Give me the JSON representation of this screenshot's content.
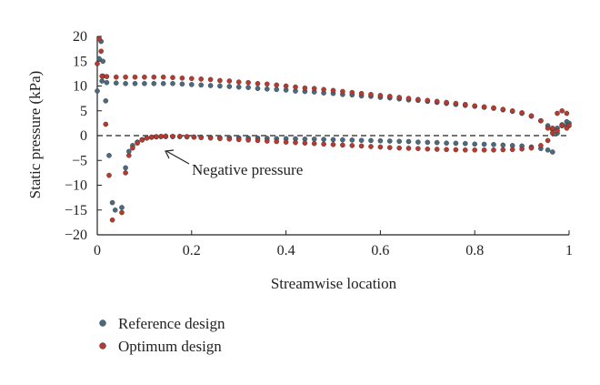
{
  "chart_data": {
    "type": "scatter",
    "xlabel": "Streamwise location",
    "ylabel": "Static pressure (kPa)",
    "xlim": [
      0,
      1
    ],
    "ylim": [
      -20,
      20
    ],
    "xticks": [
      "0",
      "0.2",
      "0.4",
      "0.6",
      "0.8",
      "1"
    ],
    "yticks": [
      "20",
      "15",
      "10",
      "5",
      "0",
      "−5",
      "−10",
      "−15",
      "−20"
    ],
    "xtick_values": [
      0,
      0.2,
      0.4,
      0.6,
      0.8,
      1
    ],
    "ytick_values": [
      20,
      15,
      10,
      5,
      0,
      -5,
      -10,
      -15,
      -20
    ],
    "grid": false,
    "reference_line": {
      "y": 0,
      "style": "dashed"
    },
    "legend_position": "bottom-left",
    "annotation": {
      "text": "Negative pressure",
      "x": 0.14,
      "y": -0.5
    },
    "series": [
      {
        "name": "Reference design",
        "color": "#4a6a80",
        "points": [
          [
            0.0,
            9.0
          ],
          [
            0.004,
            15.5
          ],
          [
            0.008,
            19.0
          ],
          [
            0.012,
            15.0
          ],
          [
            0.018,
            7.0
          ],
          [
            0.025,
            -4.0
          ],
          [
            0.032,
            -13.5
          ],
          [
            0.038,
            -15.0
          ],
          [
            0.052,
            -14.5
          ],
          [
            0.06,
            -6.5
          ],
          [
            0.067,
            -3.2
          ],
          [
            0.075,
            -2.0
          ],
          [
            0.085,
            -1.3
          ],
          [
            0.095,
            -0.8
          ],
          [
            0.105,
            -0.5
          ],
          [
            0.115,
            -0.35
          ],
          [
            0.125,
            -0.25
          ],
          [
            0.135,
            -0.2
          ],
          [
            0.145,
            -0.2
          ],
          [
            0.16,
            -0.2
          ],
          [
            0.175,
            -0.2
          ],
          [
            0.19,
            -0.25
          ],
          [
            0.205,
            -0.3
          ],
          [
            0.22,
            -0.3
          ],
          [
            0.24,
            -0.35
          ],
          [
            0.26,
            -0.4
          ],
          [
            0.28,
            -0.4
          ],
          [
            0.3,
            -0.45
          ],
          [
            0.32,
            -0.5
          ],
          [
            0.34,
            -0.5
          ],
          [
            0.36,
            -0.55
          ],
          [
            0.38,
            -0.6
          ],
          [
            0.4,
            -0.6
          ],
          [
            0.42,
            -0.65
          ],
          [
            0.44,
            -0.7
          ],
          [
            0.46,
            -0.7
          ],
          [
            0.48,
            -0.75
          ],
          [
            0.5,
            -0.8
          ],
          [
            0.52,
            -0.85
          ],
          [
            0.54,
            -0.9
          ],
          [
            0.56,
            -0.95
          ],
          [
            0.58,
            -1.0
          ],
          [
            0.6,
            -1.05
          ],
          [
            0.62,
            -1.1
          ],
          [
            0.64,
            -1.15
          ],
          [
            0.66,
            -1.2
          ],
          [
            0.68,
            -1.3
          ],
          [
            0.7,
            -1.35
          ],
          [
            0.72,
            -1.4
          ],
          [
            0.74,
            -1.5
          ],
          [
            0.76,
            -1.55
          ],
          [
            0.78,
            -1.6
          ],
          [
            0.8,
            -1.7
          ],
          [
            0.82,
            -1.75
          ],
          [
            0.84,
            -1.8
          ],
          [
            0.86,
            -1.9
          ],
          [
            0.88,
            -2.0
          ],
          [
            0.9,
            -2.1
          ],
          [
            0.92,
            -2.3
          ],
          [
            0.94,
            -2.6
          ],
          [
            0.955,
            -2.9
          ],
          [
            0.965,
            -3.3
          ],
          [
            0.975,
            0.5
          ],
          [
            0.985,
            2.0
          ],
          [
            0.995,
            2.8
          ],
          [
            1.0,
            2.5
          ],
          [
            0.01,
            11.0
          ],
          [
            0.02,
            10.7
          ],
          [
            0.04,
            10.6
          ],
          [
            0.06,
            10.5
          ],
          [
            0.08,
            10.5
          ],
          [
            0.1,
            10.5
          ],
          [
            0.12,
            10.5
          ],
          [
            0.14,
            10.5
          ],
          [
            0.16,
            10.5
          ],
          [
            0.18,
            10.4
          ],
          [
            0.2,
            10.3
          ],
          [
            0.22,
            10.2
          ],
          [
            0.24,
            10.1
          ],
          [
            0.26,
            10.0
          ],
          [
            0.28,
            9.9
          ],
          [
            0.3,
            9.8
          ],
          [
            0.32,
            9.7
          ],
          [
            0.34,
            9.5
          ],
          [
            0.36,
            9.4
          ],
          [
            0.38,
            9.3
          ],
          [
            0.4,
            9.2
          ],
          [
            0.42,
            9.0
          ],
          [
            0.44,
            8.9
          ],
          [
            0.46,
            8.8
          ],
          [
            0.48,
            8.6
          ],
          [
            0.5,
            8.5
          ],
          [
            0.52,
            8.3
          ],
          [
            0.54,
            8.2
          ],
          [
            0.56,
            8.0
          ],
          [
            0.58,
            7.9
          ],
          [
            0.6,
            7.7
          ],
          [
            0.62,
            7.6
          ],
          [
            0.64,
            7.4
          ],
          [
            0.66,
            7.2
          ],
          [
            0.68,
            7.1
          ],
          [
            0.7,
            6.9
          ],
          [
            0.72,
            6.7
          ],
          [
            0.74,
            6.5
          ],
          [
            0.76,
            6.3
          ],
          [
            0.78,
            6.1
          ],
          [
            0.8,
            5.9
          ],
          [
            0.82,
            5.7
          ],
          [
            0.84,
            5.5
          ],
          [
            0.86,
            5.2
          ],
          [
            0.88,
            4.9
          ],
          [
            0.9,
            4.5
          ],
          [
            0.92,
            3.9
          ],
          [
            0.94,
            3.0
          ],
          [
            0.955,
            2.0
          ],
          [
            0.965,
            1.2
          ],
          [
            0.975,
            1.5
          ],
          [
            0.985,
            2.2
          ],
          [
            0.995,
            2.0
          ]
        ]
      },
      {
        "name": "Optimum design",
        "color": "#b83a2e",
        "points": [
          [
            0.0,
            14.5
          ],
          [
            0.004,
            19.5
          ],
          [
            0.008,
            17.0
          ],
          [
            0.012,
            12.0
          ],
          [
            0.018,
            2.3
          ],
          [
            0.025,
            -8.0
          ],
          [
            0.032,
            -17.0
          ],
          [
            0.052,
            -15.5
          ],
          [
            0.06,
            -7.5
          ],
          [
            0.067,
            -4.0
          ],
          [
            0.075,
            -2.5
          ],
          [
            0.085,
            -1.5
          ],
          [
            0.095,
            -0.9
          ],
          [
            0.105,
            -0.5
          ],
          [
            0.115,
            -0.3
          ],
          [
            0.125,
            -0.2
          ],
          [
            0.135,
            -0.15
          ],
          [
            0.145,
            -0.1
          ],
          [
            0.16,
            -0.15
          ],
          [
            0.175,
            -0.15
          ],
          [
            0.19,
            -0.2
          ],
          [
            0.205,
            -0.3
          ],
          [
            0.22,
            -0.4
          ],
          [
            0.24,
            -0.5
          ],
          [
            0.26,
            -0.6
          ],
          [
            0.28,
            -0.7
          ],
          [
            0.3,
            -0.8
          ],
          [
            0.32,
            -0.9
          ],
          [
            0.34,
            -1.0
          ],
          [
            0.36,
            -1.1
          ],
          [
            0.38,
            -1.2
          ],
          [
            0.4,
            -1.3
          ],
          [
            0.42,
            -1.4
          ],
          [
            0.44,
            -1.5
          ],
          [
            0.46,
            -1.6
          ],
          [
            0.48,
            -1.7
          ],
          [
            0.5,
            -1.8
          ],
          [
            0.52,
            -1.9
          ],
          [
            0.54,
            -2.0
          ],
          [
            0.56,
            -2.1
          ],
          [
            0.58,
            -2.2
          ],
          [
            0.6,
            -2.3
          ],
          [
            0.62,
            -2.4
          ],
          [
            0.64,
            -2.5
          ],
          [
            0.66,
            -2.55
          ],
          [
            0.68,
            -2.6
          ],
          [
            0.7,
            -2.7
          ],
          [
            0.72,
            -2.75
          ],
          [
            0.74,
            -2.8
          ],
          [
            0.76,
            -2.85
          ],
          [
            0.78,
            -2.9
          ],
          [
            0.8,
            -2.9
          ],
          [
            0.82,
            -2.9
          ],
          [
            0.84,
            -2.9
          ],
          [
            0.86,
            -2.85
          ],
          [
            0.88,
            -2.8
          ],
          [
            0.9,
            -2.7
          ],
          [
            0.92,
            -2.5
          ],
          [
            0.94,
            -2.0
          ],
          [
            0.955,
            -1.0
          ],
          [
            0.965,
            1.5
          ],
          [
            0.975,
            4.5
          ],
          [
            0.985,
            5.0
          ],
          [
            0.995,
            4.5
          ],
          [
            1.0,
            2.0
          ],
          [
            0.01,
            12.0
          ],
          [
            0.02,
            11.9
          ],
          [
            0.04,
            11.8
          ],
          [
            0.06,
            11.8
          ],
          [
            0.08,
            11.8
          ],
          [
            0.1,
            11.8
          ],
          [
            0.12,
            11.8
          ],
          [
            0.14,
            11.8
          ],
          [
            0.16,
            11.7
          ],
          [
            0.18,
            11.6
          ],
          [
            0.2,
            11.5
          ],
          [
            0.22,
            11.4
          ],
          [
            0.24,
            11.3
          ],
          [
            0.26,
            11.1
          ],
          [
            0.28,
            11.0
          ],
          [
            0.3,
            10.8
          ],
          [
            0.32,
            10.7
          ],
          [
            0.34,
            10.5
          ],
          [
            0.36,
            10.4
          ],
          [
            0.38,
            10.2
          ],
          [
            0.4,
            10.0
          ],
          [
            0.42,
            9.8
          ],
          [
            0.44,
            9.6
          ],
          [
            0.46,
            9.5
          ],
          [
            0.48,
            9.3
          ],
          [
            0.5,
            9.1
          ],
          [
            0.52,
            8.9
          ],
          [
            0.54,
            8.7
          ],
          [
            0.56,
            8.5
          ],
          [
            0.58,
            8.3
          ],
          [
            0.6,
            8.1
          ],
          [
            0.62,
            7.9
          ],
          [
            0.64,
            7.7
          ],
          [
            0.66,
            7.5
          ],
          [
            0.68,
            7.3
          ],
          [
            0.7,
            7.1
          ],
          [
            0.72,
            6.9
          ],
          [
            0.74,
            6.7
          ],
          [
            0.76,
            6.5
          ],
          [
            0.78,
            6.3
          ],
          [
            0.8,
            6.0
          ],
          [
            0.82,
            5.8
          ],
          [
            0.84,
            5.6
          ],
          [
            0.86,
            5.3
          ],
          [
            0.88,
            5.0
          ],
          [
            0.9,
            4.6
          ],
          [
            0.92,
            4.0
          ],
          [
            0.94,
            3.0
          ],
          [
            0.955,
            1.5
          ],
          [
            0.965,
            0.5
          ],
          [
            0.975,
            1.0
          ],
          [
            0.985,
            2.0
          ],
          [
            0.995,
            1.5
          ]
        ]
      }
    ]
  }
}
